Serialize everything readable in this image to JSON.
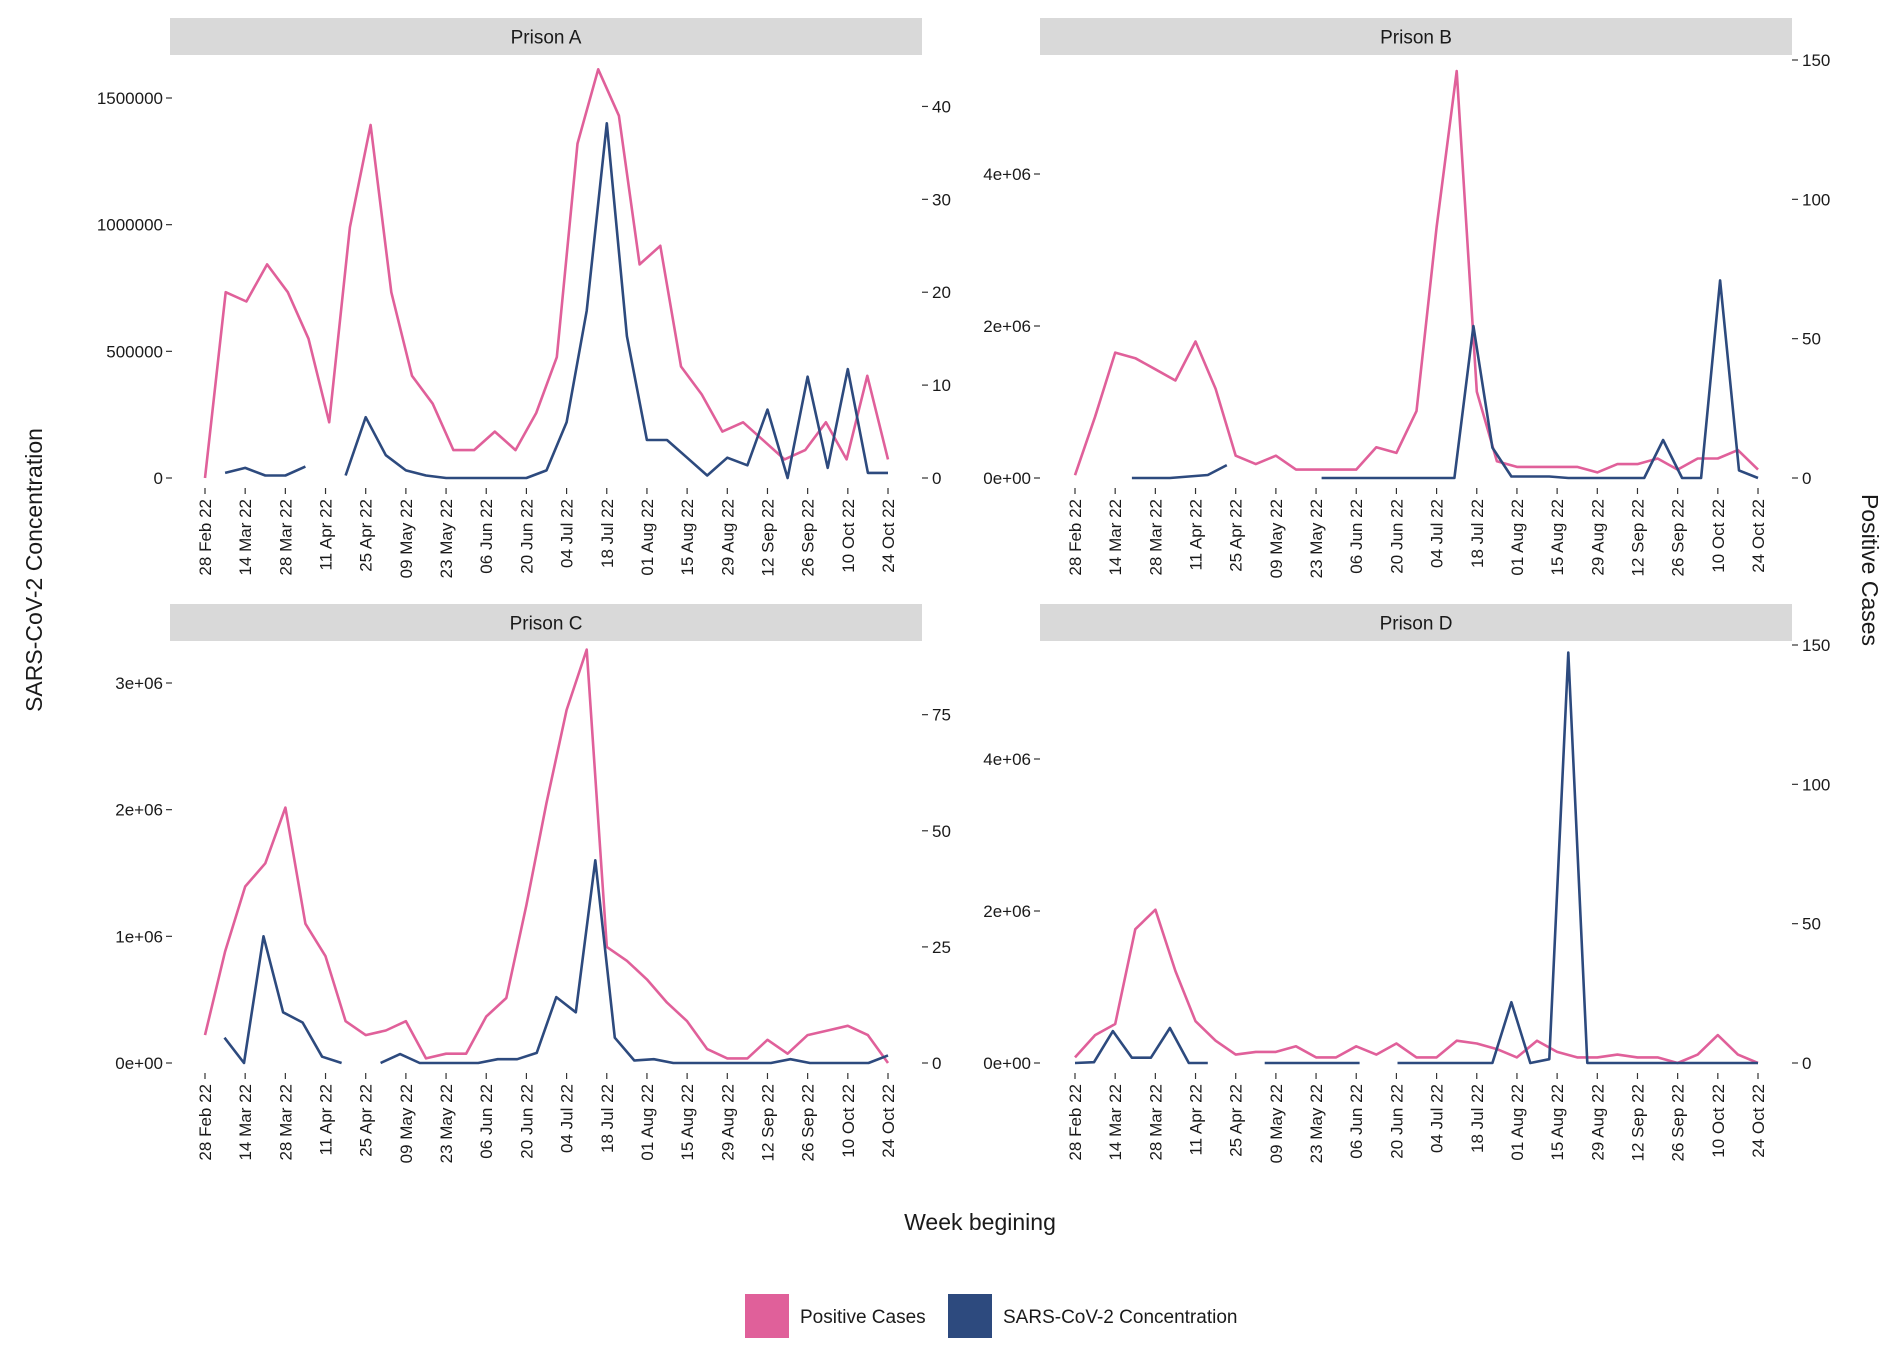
{
  "chart_data": {
    "type": "line",
    "xlabel": "Week begining",
    "ylabel_left": "SARS-CoV-2 Concentration",
    "ylabel_right": "Positive Cases",
    "x_tick_labels": [
      "28 Feb 22",
      "14 Mar 22",
      "28 Mar 22",
      "11 Apr 22",
      "25 Apr 22",
      "09 May 22",
      "23 May 22",
      "06 Jun 22",
      "20 Jun 22",
      "04 Jul 22",
      "18 Jul 22",
      "01 Aug 22",
      "15 Aug 22",
      "29 Aug 22",
      "12 Sep 22",
      "26 Sep 22",
      "10 Oct 22",
      "24 Oct 22"
    ],
    "legend": [
      {
        "label": "Positive Cases",
        "color": "#e0609a"
      },
      {
        "label": "SARS-CoV-2 Concentration",
        "color": "#2d4a7e"
      }
    ],
    "colors": {
      "cases": "#e0609a",
      "concentration": "#2d4a7e",
      "strip": "#d9d9d9"
    },
    "panels": [
      {
        "title": "Prison A",
        "left_axis": {
          "min": 0,
          "max": 1650000,
          "ticks": [
            0,
            500000,
            1000000,
            1500000
          ],
          "tick_labels": [
            "0",
            "500000",
            "1000000",
            "1500000"
          ]
        },
        "right_axis": {
          "min": 0,
          "max": 45,
          "ticks": [
            0,
            10,
            20,
            30,
            40
          ],
          "tick_labels": [
            "0",
            "10",
            "20",
            "30",
            "40"
          ]
        },
        "positive_cases": [
          0,
          20,
          19,
          23,
          20,
          15,
          6,
          27,
          38,
          20,
          11,
          8,
          3,
          3,
          5,
          3,
          7,
          13,
          36,
          44,
          39,
          23,
          25,
          12,
          9,
          5,
          6,
          4,
          2,
          3,
          6,
          2,
          11,
          2
        ],
        "concentration": [
          null,
          20000,
          40000,
          10000,
          10000,
          45000,
          null,
          10000,
          240000,
          90000,
          30000,
          10000,
          0,
          0,
          0,
          0,
          0,
          30000,
          220000,
          660000,
          1400000,
          560000,
          150000,
          150000,
          80000,
          10000,
          80000,
          50000,
          270000,
          0,
          400000,
          40000,
          430000,
          20000,
          20000
        ]
      },
      {
        "title": "Prison B",
        "left_axis": {
          "min": 0,
          "max": 5500000,
          "ticks": [
            0,
            2000000,
            4000000
          ],
          "tick_labels": [
            "0e+00",
            "2e+06",
            "4e+06"
          ]
        },
        "right_axis": {
          "min": 0,
          "max": 150,
          "ticks": [
            0,
            50,
            100,
            150
          ],
          "tick_labels": [
            "0",
            "50",
            "100",
            "150"
          ]
        },
        "positive_cases": [
          1,
          22,
          45,
          43,
          39,
          35,
          49,
          32,
          8,
          5,
          8,
          3,
          3,
          3,
          3,
          11,
          9,
          24,
          90,
          146,
          31,
          6,
          4,
          4,
          4,
          4,
          2,
          5,
          5,
          7,
          3,
          7,
          7,
          10,
          3
        ],
        "concentration": [
          null,
          null,
          null,
          0,
          0,
          0,
          20000,
          40000,
          170000,
          null,
          null,
          0,
          null,
          0,
          0,
          0,
          0,
          0,
          0,
          0,
          0,
          2000000,
          400000,
          20000,
          20000,
          20000,
          0,
          0,
          0,
          0,
          0,
          500000,
          0,
          0,
          2600000,
          100000,
          0
        ]
      },
      {
        "title": "Prison C",
        "left_axis": {
          "min": 0,
          "max": 3300000,
          "ticks": [
            0,
            1000000,
            2000000,
            3000000
          ],
          "tick_labels": [
            "0e+00",
            "1e+06",
            "2e+06",
            "3e+06"
          ]
        },
        "right_axis": {
          "min": 0,
          "max": 90,
          "ticks": [
            0,
            25,
            50,
            75
          ],
          "tick_labels": [
            "0",
            "25",
            "50",
            "75"
          ]
        },
        "positive_cases": [
          6,
          24,
          38,
          43,
          55,
          30,
          23,
          9,
          6,
          7,
          9,
          1,
          2,
          2,
          10,
          14,
          34,
          56,
          76,
          89,
          25,
          22,
          18,
          13,
          9,
          3,
          1,
          1,
          5,
          2,
          6,
          7,
          8,
          6,
          0
        ],
        "concentration": [
          null,
          200000,
          0,
          1000000,
          400000,
          320000,
          50000,
          0,
          null,
          0,
          70000,
          0,
          0,
          0,
          0,
          30000,
          30000,
          80000,
          520000,
          400000,
          1600000,
          200000,
          20000,
          30000,
          0,
          0,
          0,
          0,
          0,
          0,
          30000,
          0,
          0,
          0,
          0,
          60000
        ]
      },
      {
        "title": "Prison D",
        "left_axis": {
          "min": 0,
          "max": 5500000,
          "ticks": [
            0,
            2000000,
            4000000
          ],
          "tick_labels": [
            "0e+00",
            "2e+06",
            "4e+06"
          ]
        },
        "right_axis": {
          "min": 0,
          "max": 150,
          "ticks": [
            0,
            50,
            100,
            150
          ],
          "tick_labels": [
            "0",
            "50",
            "100",
            "150"
          ]
        },
        "positive_cases": [
          2,
          10,
          14,
          48,
          55,
          33,
          15,
          8,
          3,
          4,
          4,
          6,
          2,
          2,
          6,
          3,
          7,
          2,
          2,
          8,
          7,
          5,
          2,
          8,
          4,
          2,
          2,
          3,
          2,
          2,
          0,
          3,
          10,
          3,
          0
        ],
        "concentration": [
          0,
          10000,
          420000,
          70000,
          70000,
          460000,
          0,
          0,
          null,
          null,
          0,
          0,
          0,
          0,
          0,
          0,
          null,
          0,
          0,
          0,
          0,
          0,
          0,
          800000,
          0,
          50000,
          5400000,
          0,
          0,
          0,
          0,
          0,
          0,
          0,
          0,
          0,
          0
        ]
      }
    ]
  }
}
